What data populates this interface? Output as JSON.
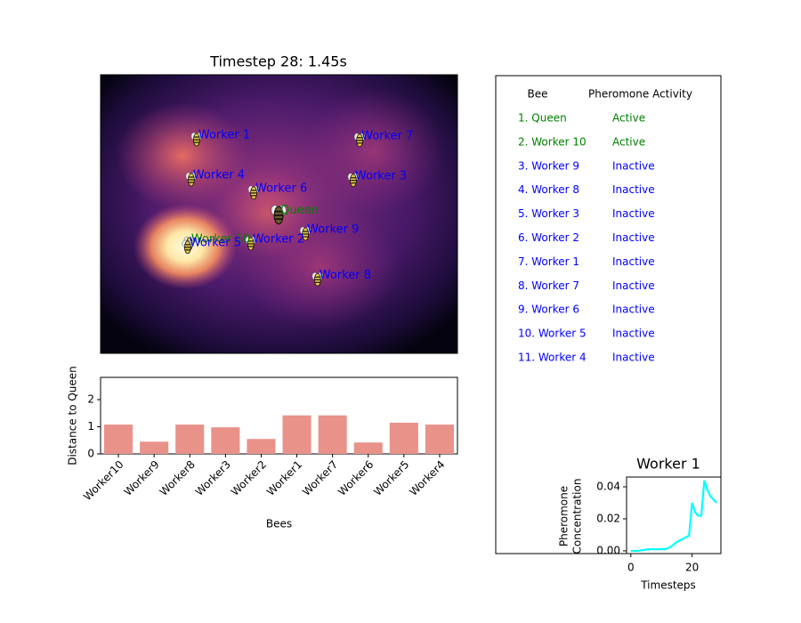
{
  "chart_data": [
    {
      "type": "scatter",
      "title": "Timestep 28: 1.45s",
      "xlim": [
        0,
        10
      ],
      "ylim": [
        0,
        8
      ],
      "points": [
        {
          "label": "Worker 1",
          "x": 2.69,
          "y": 6.16,
          "color": "#0000ff"
        },
        {
          "label": "Worker 7",
          "x": 7.26,
          "y": 6.14,
          "color": "#0000ff"
        },
        {
          "label": "Worker 4",
          "x": 2.54,
          "y": 5.01,
          "color": "#0000ff"
        },
        {
          "label": "Worker 3",
          "x": 7.08,
          "y": 4.99,
          "color": "#0000ff"
        },
        {
          "label": "Worker 6",
          "x": 4.29,
          "y": 4.63,
          "color": "#0000ff"
        },
        {
          "label": "Queen",
          "x": 4.99,
          "y": 4.0,
          "color": "#008000"
        },
        {
          "label": "Worker 9",
          "x": 5.74,
          "y": 3.45,
          "color": "#0000ff"
        },
        {
          "label": "Worker 2",
          "x": 4.21,
          "y": 3.17,
          "color": "#0000ff"
        },
        {
          "label": "Worker 10",
          "x": 2.49,
          "y": 3.17,
          "color": "#008000"
        },
        {
          "label": "Worker 5",
          "x": 2.44,
          "y": 3.07,
          "color": "#0000ff"
        },
        {
          "label": "Worker 8",
          "x": 6.08,
          "y": 2.14,
          "color": "#0000ff"
        }
      ]
    },
    {
      "type": "bar",
      "xlabel": "Bees",
      "ylabel": "Distance to Queen",
      "color": "#e9928a",
      "categories": [
        "Worker10",
        "Worker9",
        "Worker8",
        "Worker3",
        "Worker2",
        "Worker1",
        "Worker7",
        "Worker6",
        "Worker5",
        "Worker4"
      ],
      "values": [
        1.08,
        0.45,
        1.08,
        0.98,
        0.55,
        1.42,
        1.42,
        0.42,
        1.15,
        1.08
      ],
      "ylim": [
        0,
        2.82
      ],
      "yticks": [
        0,
        1,
        2
      ]
    },
    {
      "type": "table",
      "columns": [
        "Bee",
        "Pheromone Activity"
      ],
      "rows": [
        {
          "bee": "1. Queen",
          "status": "Active",
          "color": "#008000"
        },
        {
          "bee": "2. Worker 10",
          "status": "Active",
          "color": "#008000"
        },
        {
          "bee": "3. Worker 9",
          "status": "Inactive",
          "color": "#0000ff"
        },
        {
          "bee": "4. Worker 8",
          "status": "Inactive",
          "color": "#0000ff"
        },
        {
          "bee": "5. Worker 3",
          "status": "Inactive",
          "color": "#0000ff"
        },
        {
          "bee": "6. Worker 2",
          "status": "Inactive",
          "color": "#0000ff"
        },
        {
          "bee": "7. Worker 1",
          "status": "Inactive",
          "color": "#0000ff"
        },
        {
          "bee": "8. Worker 7",
          "status": "Inactive",
          "color": "#0000ff"
        },
        {
          "bee": "9. Worker 6",
          "status": "Inactive",
          "color": "#0000ff"
        },
        {
          "bee": "10. Worker 5",
          "status": "Inactive",
          "color": "#0000ff"
        },
        {
          "bee": "11. Worker 4",
          "status": "Inactive",
          "color": "#0000ff"
        }
      ]
    },
    {
      "type": "line",
      "title": "Worker 1",
      "xlabel": "Timesteps",
      "ylabel": [
        "Pheromone",
        "Concentration"
      ],
      "color": "#00ffff",
      "x": [
        0,
        1,
        2,
        3,
        4,
        5,
        6,
        7,
        8,
        9,
        10,
        11,
        12,
        13,
        14,
        15,
        16,
        17,
        18,
        19,
        20,
        21,
        22,
        23,
        24,
        25,
        26,
        27,
        28
      ],
      "values": [
        0,
        0,
        0,
        0.0002,
        0.0005,
        0.0008,
        0.001,
        0.001,
        0.001,
        0.001,
        0.001,
        0.001,
        0.0015,
        0.0025,
        0.004,
        0.0055,
        0.0065,
        0.0075,
        0.0085,
        0.0095,
        0.03,
        0.024,
        0.022,
        0.022,
        0.044,
        0.038,
        0.034,
        0.032,
        0.03
      ],
      "xlim": [
        -1.4,
        29.4
      ],
      "ylim": [
        -0.0017,
        0.0461
      ],
      "xticks": [
        0,
        20
      ],
      "yticks": [
        {
          "value": 0,
          "label": "0.00"
        },
        {
          "value": 0.02,
          "label": "0.02"
        },
        {
          "value": 0.04,
          "label": "0.04"
        }
      ]
    }
  ]
}
